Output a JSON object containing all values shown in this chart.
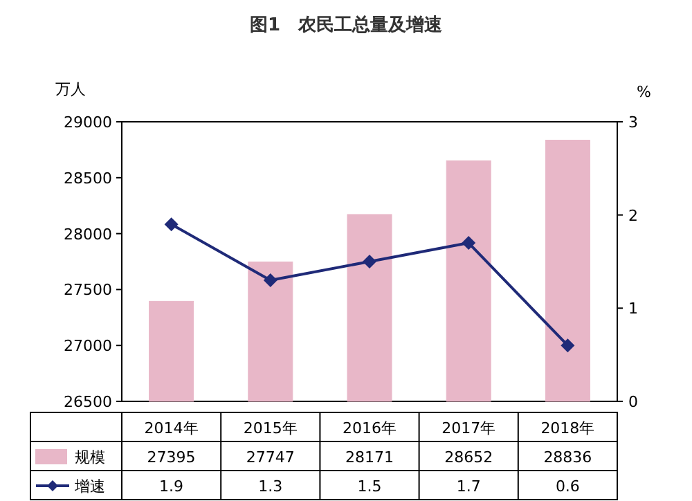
{
  "chart_data": {
    "type": "bar",
    "title": "图1　农民工总量及增速",
    "ylabel": "万人",
    "y2label": "%",
    "categories": [
      "2014年",
      "2015年",
      "2016年",
      "2017年",
      "2018年"
    ],
    "series": [
      {
        "name": "规模",
        "color": "#e8b7c8",
        "values": [
          27395,
          27747,
          28171,
          28652,
          28836
        ]
      },
      {
        "name": "增速",
        "type": "line",
        "axis": "y2",
        "color": "#1f2a78",
        "marker": "diamond",
        "values": [
          1.9,
          1.3,
          1.5,
          1.7,
          0.6
        ]
      }
    ],
    "ylim": [
      26500,
      29000
    ],
    "yticks": [
      26500,
      27000,
      27500,
      28000,
      28500,
      29000
    ],
    "y2lim": [
      0,
      3
    ],
    "y2ticks": [
      0,
      1,
      2,
      3
    ],
    "data_labels": true,
    "legend": "bottom left",
    "grid": false
  }
}
